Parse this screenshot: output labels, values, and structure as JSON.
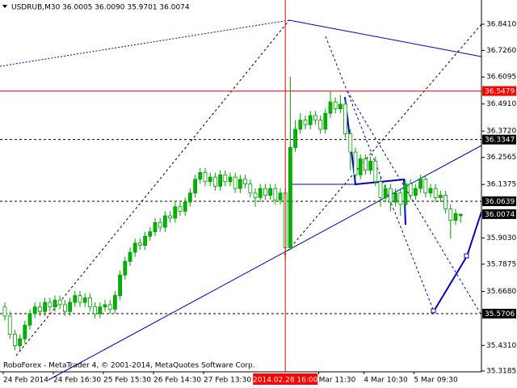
{
  "chart_data": {
    "type": "candlestick",
    "title": "USDRUB,M30  36.0005 36.0090 35.9701 36.0074",
    "footer": "RoboForex - MetaTrader 4, © 2001-2014, MetaQuotes Software Corp.",
    "up_color": "#00b400",
    "down_color": "#ffffff",
    "wick_color": "#00a000",
    "ylim": [
      35.315,
      36.9475
    ],
    "yticks": [
      {
        "value": 36.841,
        "label": "36.8410"
      },
      {
        "value": 36.726,
        "label": "36.7260"
      },
      36.6095,
      {
        "value": 36.491,
        "label": "36.4910"
      },
      {
        "value": 36.372,
        "label": "36.3720"
      },
      36.2565,
      36.1375,
      {
        "value": 35.903,
        "label": "35.9030"
      },
      35.7875,
      {
        "value": 35.668,
        "label": "35.6680"
      },
      {
        "value": 35.431,
        "label": "35.4310"
      },
      35.3185
    ],
    "levels": [
      {
        "value": 36.5479,
        "color": "#ff0000",
        "dashed": false
      },
      {
        "value": 36.3347,
        "color": "#000000",
        "dashed": true
      },
      {
        "value": 36.0639,
        "color": "#000000",
        "dashed": true
      },
      {
        "value": 35.5706,
        "color": "#000000",
        "dashed": true
      }
    ],
    "crosshair": 56,
    "categories": [
      "24 Feb 2014",
      null,
      null,
      null,
      null,
      null,
      null,
      null,
      null,
      null,
      "24 Feb 16:30",
      null,
      null,
      null,
      null,
      null,
      null,
      null,
      null,
      null,
      "25 Feb 15:30",
      null,
      null,
      null,
      null,
      null,
      null,
      null,
      null,
      null,
      "26 Feb 14:30",
      null,
      null,
      null,
      null,
      null,
      null,
      null,
      null,
      null,
      "27 Feb 13:30",
      null,
      null,
      null,
      null,
      null,
      null,
      null,
      null,
      null,
      null,
      null,
      null,
      null,
      null,
      null,
      "2014.02.28 16:00",
      null,
      null,
      null,
      null,
      null,
      null,
      "Mar 11:30",
      null,
      null,
      null,
      null,
      null,
      null,
      null,
      null,
      "4 Mar 10:30",
      null,
      null,
      null,
      null,
      null,
      null,
      null,
      null,
      null,
      "5 Mar 09:30",
      null,
      null,
      null,
      null,
      null,
      null,
      null,
      null,
      null
    ],
    "candles": [
      [
        35.6,
        35.62,
        35.54,
        35.56
      ],
      [
        35.56,
        35.58,
        35.46,
        35.48
      ],
      [
        35.48,
        35.5,
        35.41,
        35.43
      ],
      [
        35.43,
        35.48,
        35.41,
        35.46
      ],
      [
        35.46,
        35.54,
        35.44,
        35.52
      ],
      [
        35.52,
        35.59,
        35.5,
        35.57
      ],
      [
        35.57,
        35.62,
        35.55,
        35.6
      ],
      [
        35.6,
        35.62,
        35.56,
        35.58
      ],
      [
        35.58,
        35.64,
        35.56,
        35.62
      ],
      [
        35.62,
        35.64,
        35.58,
        35.6
      ],
      [
        35.6,
        35.65,
        35.58,
        35.63
      ],
      [
        35.63,
        35.65,
        35.59,
        35.61
      ],
      [
        35.61,
        35.63,
        35.56,
        35.58
      ],
      [
        35.58,
        35.64,
        35.56,
        35.62
      ],
      [
        35.62,
        35.67,
        35.6,
        35.65
      ],
      [
        35.65,
        35.67,
        35.6,
        35.62
      ],
      [
        35.62,
        35.66,
        35.6,
        35.64
      ],
      [
        35.64,
        35.66,
        35.58,
        35.6
      ],
      [
        35.6,
        35.62,
        35.55,
        35.57
      ],
      [
        35.57,
        35.62,
        35.55,
        35.6
      ],
      [
        35.6,
        35.63,
        35.58,
        35.61
      ],
      [
        35.61,
        35.63,
        35.57,
        35.59
      ],
      [
        35.59,
        35.67,
        35.57,
        35.65
      ],
      [
        35.65,
        35.76,
        35.63,
        35.74
      ],
      [
        35.74,
        35.82,
        35.72,
        35.8
      ],
      [
        35.8,
        35.86,
        35.78,
        35.84
      ],
      [
        35.84,
        35.9,
        35.82,
        35.88
      ],
      [
        35.88,
        35.9,
        35.85,
        35.87
      ],
      [
        35.87,
        35.93,
        35.85,
        35.91
      ],
      [
        35.91,
        35.95,
        35.89,
        35.93
      ],
      [
        35.93,
        35.99,
        35.91,
        35.97
      ],
      [
        35.97,
        35.99,
        35.93,
        35.95
      ],
      [
        35.95,
        36.02,
        35.93,
        36.0
      ],
      [
        36.0,
        36.02,
        35.97,
        35.99
      ],
      [
        35.99,
        36.06,
        35.97,
        36.04
      ],
      [
        36.04,
        36.06,
        36.0,
        36.02
      ],
      [
        36.02,
        36.08,
        36.0,
        36.06
      ],
      [
        36.06,
        36.12,
        36.04,
        36.1
      ],
      [
        36.1,
        36.18,
        36.08,
        36.16
      ],
      [
        36.16,
        36.21,
        36.14,
        36.19
      ],
      [
        36.19,
        36.21,
        36.13,
        36.15
      ],
      [
        36.15,
        36.19,
        36.13,
        36.17
      ],
      [
        36.17,
        36.19,
        36.11,
        36.13
      ],
      [
        36.13,
        36.2,
        36.11,
        36.18
      ],
      [
        36.18,
        36.2,
        36.13,
        36.15
      ],
      [
        36.15,
        36.19,
        36.13,
        36.17
      ],
      [
        36.17,
        36.19,
        36.1,
        36.12
      ],
      [
        36.12,
        36.18,
        36.1,
        36.16
      ],
      [
        36.16,
        36.18,
        36.12,
        36.14
      ],
      [
        36.14,
        36.16,
        36.08,
        36.1
      ],
      [
        36.1,
        36.12,
        36.04,
        36.08
      ],
      [
        36.08,
        36.14,
        36.06,
        36.12
      ],
      [
        36.12,
        36.14,
        36.07,
        36.09
      ],
      [
        36.09,
        36.14,
        36.07,
        36.12
      ],
      [
        36.12,
        36.14,
        36.05,
        36.07
      ],
      [
        36.07,
        36.12,
        36.05,
        36.1
      ],
      [
        36.1,
        36.12,
        35.8,
        35.86
      ],
      [
        35.86,
        36.61,
        35.85,
        36.3
      ],
      [
        36.3,
        36.42,
        36.28,
        36.38
      ],
      [
        36.38,
        36.45,
        36.36,
        36.42
      ],
      [
        36.42,
        36.44,
        36.38,
        36.4
      ],
      [
        36.4,
        36.46,
        36.38,
        36.44
      ],
      [
        36.44,
        36.46,
        36.4,
        36.42
      ],
      [
        36.42,
        36.44,
        36.36,
        36.38
      ],
      [
        36.38,
        36.47,
        36.36,
        36.45
      ],
      [
        36.45,
        36.55,
        36.43,
        36.5
      ],
      [
        36.5,
        36.52,
        36.45,
        36.47
      ],
      [
        36.47,
        36.53,
        36.45,
        36.49
      ],
      [
        36.49,
        36.51,
        36.34,
        36.36
      ],
      [
        36.36,
        36.38,
        36.2,
        36.28
      ],
      [
        36.28,
        36.3,
        36.16,
        36.18
      ],
      [
        36.18,
        36.27,
        36.16,
        36.25
      ],
      [
        36.25,
        36.27,
        36.18,
        36.2
      ],
      [
        36.2,
        36.26,
        36.18,
        36.24
      ],
      [
        36.24,
        36.26,
        36.13,
        36.15
      ],
      [
        36.15,
        36.17,
        36.04,
        36.08
      ],
      [
        36.08,
        36.14,
        36.06,
        36.12
      ],
      [
        36.12,
        36.14,
        36.02,
        36.06
      ],
      [
        36.06,
        36.12,
        36.04,
        36.1
      ],
      [
        36.1,
        36.12,
        36.0,
        36.05
      ],
      [
        36.05,
        36.16,
        36.03,
        36.14
      ],
      [
        36.14,
        36.16,
        36.07,
        36.09
      ],
      [
        36.09,
        36.14,
        36.07,
        36.12
      ],
      [
        36.12,
        36.18,
        36.1,
        36.16
      ],
      [
        36.16,
        36.18,
        36.08,
        36.1
      ],
      [
        36.1,
        36.14,
        36.08,
        36.12
      ],
      [
        36.12,
        36.14,
        36.06,
        36.08
      ],
      [
        36.08,
        36.11,
        36.06,
        36.09
      ],
      [
        36.09,
        36.11,
        36.01,
        36.03
      ],
      [
        36.03,
        36.05,
        35.9,
        35.98
      ],
      [
        35.98,
        36.03,
        35.96,
        36.01
      ],
      [
        36.0005,
        36.009,
        35.9701,
        36.0074
      ]
    ]
  }
}
